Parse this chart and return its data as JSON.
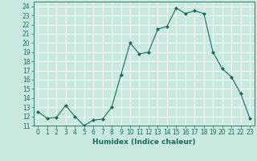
{
  "x": [
    0,
    1,
    2,
    3,
    4,
    5,
    6,
    7,
    8,
    9,
    10,
    11,
    12,
    13,
    14,
    15,
    16,
    17,
    18,
    19,
    20,
    21,
    22,
    23
  ],
  "y": [
    12.5,
    11.8,
    11.9,
    13.2,
    12.0,
    11.0,
    11.6,
    11.7,
    13.0,
    16.5,
    20.0,
    18.8,
    19.0,
    21.5,
    21.8,
    23.8,
    23.2,
    23.5,
    23.2,
    19.0,
    17.2,
    16.3,
    14.5,
    11.8
  ],
  "line_color": "#1a6b5e",
  "marker": "D",
  "marker_size": 2,
  "bg_color": "#c8e8e0",
  "grid_color": "#ffffff",
  "xlabel": "Humidex (Indice chaleur)",
  "xlim": [
    -0.5,
    23.5
  ],
  "ylim": [
    11,
    24.5
  ],
  "yticks": [
    11,
    12,
    13,
    14,
    15,
    16,
    17,
    18,
    19,
    20,
    21,
    22,
    23,
    24
  ],
  "xticks": [
    0,
    1,
    2,
    3,
    4,
    5,
    6,
    7,
    8,
    9,
    10,
    11,
    12,
    13,
    14,
    15,
    16,
    17,
    18,
    19,
    20,
    21,
    22,
    23
  ],
  "axis_color": "#1a6b5e",
  "label_fontsize": 6.5,
  "tick_fontsize": 5.5
}
